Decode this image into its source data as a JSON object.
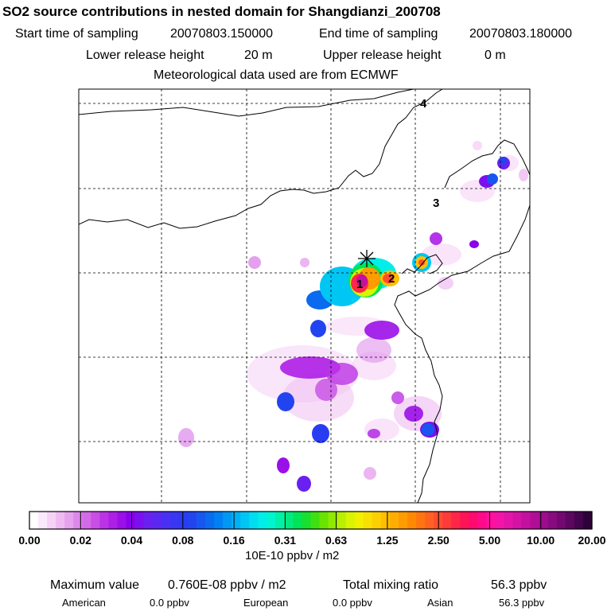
{
  "header": {
    "title": "SO2 source contributions in nested domain for Shangdianzi_200708",
    "start_label": "Start time of sampling",
    "start_value": "20070803.150000",
    "end_label": "End time of sampling",
    "end_value": "20070803.180000",
    "lower_label": "Lower release height",
    "lower_value": "20 m",
    "upper_label": "Upper release height",
    "upper_value": "0 m",
    "met_text": "Meteorological data used are from ECMWF"
  },
  "chart_data": {
    "type": "heatmap",
    "title": "SO2 source contributions in nested domain for Shangdianzi_200708",
    "receptor_marker": "+",
    "grid_labels": [
      "1",
      "2",
      "3",
      "4"
    ],
    "colorbar": {
      "units": "10E-10 ppbv / m2",
      "tick_labels": [
        "0.00",
        "0.02",
        "0.04",
        "0.08",
        "0.16",
        "0.31",
        "0.63",
        "1.25",
        "2.50",
        "5.00",
        "10.00",
        "20.00"
      ],
      "colors": [
        "#ffffff",
        "#fbe8fb",
        "#f6d2f6",
        "#efbaf2",
        "#e6a2ee",
        "#dd88eb",
        "#d36ae8",
        "#c84ee6",
        "#bb33e6",
        "#ad1ee6",
        "#9b0fe8",
        "#8a00ea",
        "#7a10ee",
        "#6a20f0",
        "#5a28f2",
        "#4a30f4",
        "#3a36f2",
        "#2a3cf2",
        "#2244f0",
        "#1856f0",
        "#0a6af0",
        "#0080f4",
        "#0098f4",
        "#00b0f4",
        "#00c6f4",
        "#00dcf0",
        "#00eeea",
        "#00f4d0",
        "#00f0a8",
        "#00ea80",
        "#00e458",
        "#18e030",
        "#40e010",
        "#68e400",
        "#90ea00",
        "#b8f000",
        "#d8f400",
        "#f0f000",
        "#f8e000",
        "#fcd000",
        "#ffbf00",
        "#ffae00",
        "#ff9c00",
        "#ff8a00",
        "#ff7610",
        "#ff6220",
        "#ff4e2e",
        "#ff3a3a",
        "#ff2648",
        "#ff1458",
        "#ff0a70",
        "#ff0a88",
        "#ff10a0",
        "#f414a8",
        "#e414a8",
        "#d412a4",
        "#c4109e",
        "#b00e96",
        "#9c0c8c",
        "#880a80",
        "#720870",
        "#5c0660",
        "#44044e",
        "#2c0238"
      ]
    },
    "summary": {
      "max_label": "Maximum value",
      "max_value": "0.760E-08 ppbv / m2",
      "total_label": "Total mixing ratio",
      "total_value": "56.3 ppbv",
      "regions": [
        {
          "name": "American",
          "value": "0.0 ppbv"
        },
        {
          "name": "European",
          "value": "0.0 ppbv"
        },
        {
          "name": "Asian",
          "value": "56.3 ppbv"
        }
      ]
    }
  }
}
